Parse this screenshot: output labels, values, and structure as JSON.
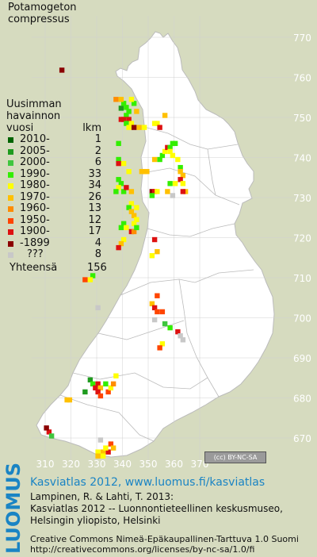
{
  "title": [
    "Potamogeton",
    "compressus"
  ],
  "legend": {
    "heading": [
      "Uusimman",
      "havainnon",
      "vuosi"
    ],
    "count_heading": "lkm",
    "rows": [
      {
        "label": "2010-",
        "count": "1",
        "color": "#006400"
      },
      {
        "label": "2005-",
        "count": "2",
        "color": "#1f9b1f"
      },
      {
        "label": "2000-",
        "count": "6",
        "color": "#3fc63f"
      },
      {
        "label": "1990-",
        "count": "33",
        "color": "#33ee00"
      },
      {
        "label": "1980-",
        "count": "34",
        "color": "#ffff00"
      },
      {
        "label": "1970-",
        "count": "26",
        "color": "#ffc000"
      },
      {
        "label": "1960-",
        "count": "13",
        "color": "#ff8c00"
      },
      {
        "label": "1950-",
        "count": "12",
        "color": "#ff4500"
      },
      {
        "label": "1900-",
        "count": "17",
        "color": "#dd1111"
      },
      {
        "label": "-1899",
        "count": "4",
        "color": "#8b0000"
      },
      {
        "label": "???",
        "count": "8",
        "color": "#c8c8c8"
      }
    ],
    "total_label": "Yhteensä",
    "total_count": "156"
  },
  "axis": {
    "x_ticks": [
      "310",
      "320",
      "330",
      "340",
      "350",
      "360",
      "370"
    ],
    "y_ticks": [
      "770",
      "760",
      "750",
      "740",
      "730",
      "720",
      "710",
      "700",
      "690",
      "680",
      "670"
    ]
  },
  "license_badge": "BY-NC-SA",
  "footer": {
    "logo": "LUOMUS",
    "link_line": "Kasviatlas 2012, www.luomus.fi/kasviatlas",
    "citation": [
      "Lampinen, R. & Lahti, T. 2013:",
      "Kasviatlas 2012 -- Luonnontieteellinen keskusmuseo,",
      "Helsingin yliopisto, Helsinki"
    ],
    "license": [
      "Creative Commons Nimeä-Epäkaupallinen-Tarttuva 1.0 Suomi",
      "http://creativecommons.org/licenses/by-nc-sa/1.0/fi"
    ]
  },
  "colors": {
    "land": "#ffffff",
    "background": "#d6dbbf",
    "border": "#bbbbbb",
    "grid": "#d0d0d0",
    "tick_text": "#ffffff",
    "link": "#1a84c4"
  },
  "observations": [
    {
      "e": 316.5,
      "n": 761.8,
      "cat": 9
    },
    {
      "e": 339.5,
      "n": 752.3,
      "cat": 1
    },
    {
      "e": 340.5,
      "n": 753.5,
      "cat": 3
    },
    {
      "e": 341.5,
      "n": 752.5,
      "cat": 3
    },
    {
      "e": 342.5,
      "n": 751.5,
      "cat": 3
    },
    {
      "e": 341.5,
      "n": 750.5,
      "cat": 3
    },
    {
      "e": 340.5,
      "n": 749.5,
      "cat": 8
    },
    {
      "e": 342.5,
      "n": 749.5,
      "cat": 8
    },
    {
      "e": 341.5,
      "n": 748.5,
      "cat": 3
    },
    {
      "e": 343.5,
      "n": 748.5,
      "cat": 4
    },
    {
      "e": 342.5,
      "n": 747.5,
      "cat": 4
    },
    {
      "e": 344.5,
      "n": 747.5,
      "cat": 9
    },
    {
      "e": 344.5,
      "n": 753.5,
      "cat": 3
    },
    {
      "e": 343.5,
      "n": 754.5,
      "cat": 4
    },
    {
      "e": 339.5,
      "n": 754.5,
      "cat": 5
    },
    {
      "e": 339.5,
      "n": 749.5,
      "cat": 8
    },
    {
      "e": 337.5,
      "n": 754.5,
      "cat": 6
    },
    {
      "e": 345.5,
      "n": 751.5,
      "cat": 5
    },
    {
      "e": 346.5,
      "n": 747.5,
      "cat": 5
    },
    {
      "e": 348.5,
      "n": 747.5,
      "cat": 4
    },
    {
      "e": 352.5,
      "n": 748.5,
      "cat": 4
    },
    {
      "e": 353.5,
      "n": 748.5,
      "cat": 4
    },
    {
      "e": 354.5,
      "n": 747.5,
      "cat": 8
    },
    {
      "e": 356.5,
      "n": 750.5,
      "cat": 5
    },
    {
      "e": 338.5,
      "n": 743.5,
      "cat": 3
    },
    {
      "e": 338.5,
      "n": 739.5,
      "cat": 3
    },
    {
      "e": 338.5,
      "n": 738.5,
      "cat": 8
    },
    {
      "e": 340.5,
      "n": 738.5,
      "cat": 4
    },
    {
      "e": 342.5,
      "n": 736.5,
      "cat": 4
    },
    {
      "e": 338.5,
      "n": 734.5,
      "cat": 3
    },
    {
      "e": 339.5,
      "n": 733.5,
      "cat": 3
    },
    {
      "e": 338.5,
      "n": 732.5,
      "cat": 4
    },
    {
      "e": 337.5,
      "n": 731.5,
      "cat": 3
    },
    {
      "e": 340.5,
      "n": 731.5,
      "cat": 3
    },
    {
      "e": 341.5,
      "n": 732.5,
      "cat": 8
    },
    {
      "e": 343.5,
      "n": 731.5,
      "cat": 5
    },
    {
      "e": 347.5,
      "n": 736.5,
      "cat": 5
    },
    {
      "e": 348.5,
      "n": 736.5,
      "cat": 5
    },
    {
      "e": 349.5,
      "n": 736.5,
      "cat": 5
    },
    {
      "e": 352.5,
      "n": 739.5,
      "cat": 5
    },
    {
      "e": 355.5,
      "n": 740.5,
      "cat": 3
    },
    {
      "e": 354.5,
      "n": 739.5,
      "cat": 3
    },
    {
      "e": 356.5,
      "n": 741.5,
      "cat": 4
    },
    {
      "e": 357.5,
      "n": 742.5,
      "cat": 8
    },
    {
      "e": 358.5,
      "n": 742.5,
      "cat": 3
    },
    {
      "e": 359.5,
      "n": 743.5,
      "cat": 3
    },
    {
      "e": 360.5,
      "n": 743.5,
      "cat": 3
    },
    {
      "e": 358.5,
      "n": 741.5,
      "cat": 4
    },
    {
      "e": 359.5,
      "n": 740.5,
      "cat": 4
    },
    {
      "e": 361.5,
      "n": 739.5,
      "cat": 4
    },
    {
      "e": 362.5,
      "n": 737.5,
      "cat": 3
    },
    {
      "e": 362.5,
      "n": 736.5,
      "cat": 5
    },
    {
      "e": 363.5,
      "n": 735.5,
      "cat": 5
    },
    {
      "e": 362.5,
      "n": 734.5,
      "cat": 8
    },
    {
      "e": 363.5,
      "n": 733.5,
      "cat": 4
    },
    {
      "e": 364.5,
      "n": 731.5,
      "cat": 5
    },
    {
      "e": 363.5,
      "n": 731.5,
      "cat": 8
    },
    {
      "e": 358.5,
      "n": 733.5,
      "cat": 3
    },
    {
      "e": 360.5,
      "n": 733.5,
      "cat": 4
    },
    {
      "e": 359.5,
      "n": 730.5,
      "cat": 10
    },
    {
      "e": 357.5,
      "n": 731.5,
      "cat": 5
    },
    {
      "e": 351.5,
      "n": 731.5,
      "cat": 9
    },
    {
      "e": 352.5,
      "n": 731.5,
      "cat": 8
    },
    {
      "e": 351.5,
      "n": 730.5,
      "cat": 3
    },
    {
      "e": 353.5,
      "n": 731.5,
      "cat": 4
    },
    {
      "e": 343.5,
      "n": 728.5,
      "cat": 4
    },
    {
      "e": 342.5,
      "n": 727.5,
      "cat": 3
    },
    {
      "e": 345.5,
      "n": 727.5,
      "cat": 4
    },
    {
      "e": 343.5,
      "n": 726.5,
      "cat": 5
    },
    {
      "e": 344.5,
      "n": 725.5,
      "cat": 5
    },
    {
      "e": 345.5,
      "n": 724.5,
      "cat": 4
    },
    {
      "e": 344.5,
      "n": 723.5,
      "cat": 4
    },
    {
      "e": 340.5,
      "n": 723.5,
      "cat": 3
    },
    {
      "e": 339.5,
      "n": 722.5,
      "cat": 3
    },
    {
      "e": 341.5,
      "n": 722.5,
      "cat": 4
    },
    {
      "e": 343.5,
      "n": 721.5,
      "cat": 8
    },
    {
      "e": 344.5,
      "n": 721.5,
      "cat": 6
    },
    {
      "e": 345.5,
      "n": 722.5,
      "cat": 3
    },
    {
      "e": 340.5,
      "n": 719.5,
      "cat": 4
    },
    {
      "e": 339.5,
      "n": 718.5,
      "cat": 5
    },
    {
      "e": 338.5,
      "n": 717.5,
      "cat": 8
    },
    {
      "e": 352.5,
      "n": 719.5,
      "cat": 8
    },
    {
      "e": 353.5,
      "n": 716.5,
      "cat": 5
    },
    {
      "e": 351.5,
      "n": 715.5,
      "cat": 4
    },
    {
      "e": 328.5,
      "n": 710.5,
      "cat": 3
    },
    {
      "e": 327.5,
      "n": 709.5,
      "cat": 4
    },
    {
      "e": 325.5,
      "n": 709.5,
      "cat": 7
    },
    {
      "e": 330.5,
      "n": 702.5,
      "cat": 10
    },
    {
      "e": 353.5,
      "n": 705.5,
      "cat": 7
    },
    {
      "e": 351.5,
      "n": 703.5,
      "cat": 5
    },
    {
      "e": 352.5,
      "n": 702.5,
      "cat": 8
    },
    {
      "e": 353.5,
      "n": 701.5,
      "cat": 7
    },
    {
      "e": 355.5,
      "n": 701.5,
      "cat": 7
    },
    {
      "e": 352.5,
      "n": 699.5,
      "cat": 10
    },
    {
      "e": 356.5,
      "n": 698.5,
      "cat": 2
    },
    {
      "e": 358.5,
      "n": 697.5,
      "cat": 3
    },
    {
      "e": 361.5,
      "n": 696.5,
      "cat": 8
    },
    {
      "e": 362.5,
      "n": 695.5,
      "cat": 10
    },
    {
      "e": 363.5,
      "n": 694.5,
      "cat": 10
    },
    {
      "e": 355.5,
      "n": 693.5,
      "cat": 4
    },
    {
      "e": 354.5,
      "n": 692.5,
      "cat": 7
    },
    {
      "e": 327.5,
      "n": 684.5,
      "cat": 1
    },
    {
      "e": 328.5,
      "n": 683.5,
      "cat": 3
    },
    {
      "e": 329.5,
      "n": 682.5,
      "cat": 8
    },
    {
      "e": 330.5,
      "n": 683.5,
      "cat": 8
    },
    {
      "e": 331.5,
      "n": 682.5,
      "cat": 5
    },
    {
      "e": 330.5,
      "n": 681.5,
      "cat": 8
    },
    {
      "e": 331.5,
      "n": 680.5,
      "cat": 7
    },
    {
      "e": 334.5,
      "n": 681.5,
      "cat": 7
    },
    {
      "e": 335.5,
      "n": 682.5,
      "cat": 4
    },
    {
      "e": 333.5,
      "n": 683.5,
      "cat": 3
    },
    {
      "e": 336.5,
      "n": 683.5,
      "cat": 6
    },
    {
      "e": 337.5,
      "n": 685.5,
      "cat": 4
    },
    {
      "e": 318.5,
      "n": 679.5,
      "cat": 5
    },
    {
      "e": 319.5,
      "n": 679.5,
      "cat": 5
    },
    {
      "e": 325.5,
      "n": 681.5,
      "cat": 1
    },
    {
      "e": 311.5,
      "n": 671.5,
      "cat": 8
    },
    {
      "e": 310.5,
      "n": 672.5,
      "cat": 9
    },
    {
      "e": 312.5,
      "n": 670.5,
      "cat": 2
    },
    {
      "e": 331.5,
      "n": 669.5,
      "cat": 10
    },
    {
      "e": 330.5,
      "n": 666.5,
      "cat": 4
    },
    {
      "e": 332.5,
      "n": 666.5,
      "cat": 5
    },
    {
      "e": 332.5,
      "n": 665.5,
      "cat": 4
    },
    {
      "e": 330.5,
      "n": 665.5,
      "cat": 5
    },
    {
      "e": 335.5,
      "n": 668.5,
      "cat": 7
    },
    {
      "e": 336.5,
      "n": 667.5,
      "cat": 5
    },
    {
      "e": 334.5,
      "n": 666.5,
      "cat": 8
    },
    {
      "e": 333.5,
      "n": 667.5,
      "cat": 4
    }
  ]
}
